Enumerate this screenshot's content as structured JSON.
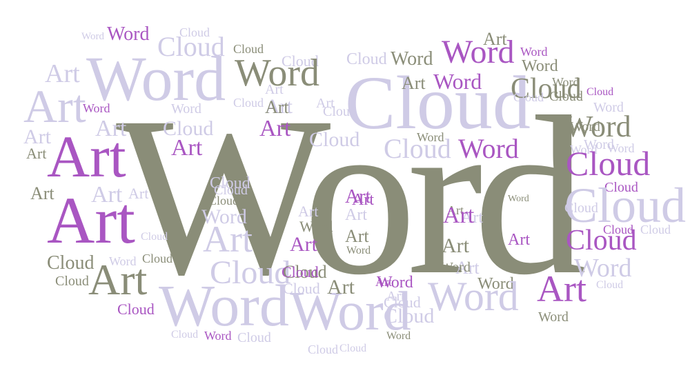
{
  "word_cloud": {
    "palette": {
      "olive": "#8a8d78",
      "purple": "#a956c2",
      "lavender": "#cfcbe6"
    },
    "words": [
      {
        "text": "Word",
        "tone": "olive"
      },
      {
        "text": "Word",
        "tone": "lavender"
      },
      {
        "text": "Cloud",
        "tone": "lavender"
      },
      {
        "text": "Art",
        "tone": "lavender"
      },
      {
        "text": "Art",
        "tone": "lavender"
      },
      {
        "text": "Word",
        "tone": "lavender"
      },
      {
        "text": "Word",
        "tone": "purple"
      },
      {
        "text": "Cloud",
        "tone": "lavender"
      },
      {
        "text": "Cloud",
        "tone": "olive"
      },
      {
        "text": "Cloud",
        "tone": "lavender"
      },
      {
        "text": "Word",
        "tone": "olive"
      },
      {
        "text": "Art",
        "tone": "lavender"
      },
      {
        "text": "Art",
        "tone": "lavender"
      },
      {
        "text": "Word",
        "tone": "purple"
      },
      {
        "text": "Word",
        "tone": "lavender"
      },
      {
        "text": "Cloud",
        "tone": "lavender"
      },
      {
        "text": "Art",
        "tone": "lavender"
      },
      {
        "text": "Art",
        "tone": "olive"
      },
      {
        "text": "Cloud",
        "tone": "lavender"
      },
      {
        "text": "Art",
        "tone": "purple"
      },
      {
        "text": "Art",
        "tone": "lavender"
      },
      {
        "text": "Art",
        "tone": "purple"
      },
      {
        "text": "Art",
        "tone": "lavender"
      },
      {
        "text": "Art",
        "tone": "olive"
      },
      {
        "text": "Art",
        "tone": "purple"
      },
      {
        "text": "Art",
        "tone": "purple"
      },
      {
        "text": "Art",
        "tone": "olive"
      },
      {
        "text": "Art",
        "tone": "lavender"
      },
      {
        "text": "Art",
        "tone": "lavender"
      },
      {
        "text": "Cloud",
        "tone": "olive"
      },
      {
        "text": "Word",
        "tone": "lavender"
      },
      {
        "text": "Cloud",
        "tone": "olive"
      },
      {
        "text": "Cloud",
        "tone": "olive"
      },
      {
        "text": "Art",
        "tone": "olive"
      },
      {
        "text": "Cloud",
        "tone": "lavender"
      },
      {
        "text": "Cloud",
        "tone": "purple"
      },
      {
        "text": "Word",
        "tone": "lavender"
      },
      {
        "text": "Cloud",
        "tone": "lavender"
      },
      {
        "text": "Art",
        "tone": "lavender"
      },
      {
        "text": "Cloud",
        "tone": "olive"
      },
      {
        "text": "Cloud",
        "tone": "lavender"
      },
      {
        "text": "Word",
        "tone": "olive"
      },
      {
        "text": "Cloud",
        "tone": "lavender"
      },
      {
        "text": "Word",
        "tone": "lavender"
      },
      {
        "text": "Art",
        "tone": "purple"
      },
      {
        "text": "Art",
        "tone": "purple"
      },
      {
        "text": "Cloud",
        "tone": "lavender"
      },
      {
        "text": "Art",
        "tone": "lavender"
      },
      {
        "text": "Cloud",
        "tone": "olive"
      },
      {
        "text": "Cloud",
        "tone": "lavender"
      },
      {
        "text": "Cloud",
        "tone": "lavender"
      },
      {
        "text": "Word",
        "tone": "purple"
      },
      {
        "text": "Word",
        "tone": "lavender"
      },
      {
        "text": "Cloud",
        "tone": "lavender"
      },
      {
        "text": "Art",
        "tone": "lavender"
      },
      {
        "text": "Art",
        "tone": "purple"
      },
      {
        "text": "Art",
        "tone": "olive"
      },
      {
        "text": "Word",
        "tone": "olive"
      },
      {
        "text": "Cloud",
        "tone": "purple"
      },
      {
        "text": "Art",
        "tone": "olive"
      },
      {
        "text": "Cloud",
        "tone": "lavender"
      },
      {
        "text": "Art",
        "tone": "purple"
      },
      {
        "text": "Art",
        "tone": "lavender"
      },
      {
        "text": "Art",
        "tone": "olive"
      },
      {
        "text": "Word",
        "tone": "olive"
      },
      {
        "text": "Cloud",
        "tone": "lavender"
      },
      {
        "text": "Art",
        "tone": "olive"
      },
      {
        "text": "Word",
        "tone": "purple"
      },
      {
        "text": "Word",
        "tone": "olive"
      },
      {
        "text": "Cloud",
        "tone": "lavender"
      },
      {
        "text": "Cloud",
        "tone": "lavender"
      },
      {
        "text": "Cloud",
        "tone": "lavender"
      },
      {
        "text": "Cloud",
        "tone": "lavender"
      },
      {
        "text": "Word",
        "tone": "olive"
      },
      {
        "text": "Cloud",
        "tone": "olive"
      },
      {
        "text": "Art",
        "tone": "olive"
      },
      {
        "text": "Word",
        "tone": "purple"
      },
      {
        "text": "Word",
        "tone": "olive"
      },
      {
        "text": "Art",
        "tone": "olive"
      },
      {
        "text": "Word",
        "tone": "purple"
      },
      {
        "text": "Word",
        "tone": "purple"
      },
      {
        "text": "Cloud",
        "tone": "lavender"
      },
      {
        "text": "Word",
        "tone": "olive"
      },
      {
        "text": "Word",
        "tone": "purple"
      },
      {
        "text": "Cloud",
        "tone": "olive"
      },
      {
        "text": "Word",
        "tone": "olive"
      },
      {
        "text": "Word",
        "tone": "lavender"
      },
      {
        "text": "Cloud",
        "tone": "purple"
      },
      {
        "text": "Word",
        "tone": "lavender"
      },
      {
        "text": "Word",
        "tone": "olive"
      },
      {
        "text": "Word",
        "tone": "lavender"
      },
      {
        "text": "Cloud",
        "tone": "purple"
      },
      {
        "text": "Cloud",
        "tone": "purple"
      },
      {
        "text": "Cloud",
        "tone": "lavender"
      },
      {
        "text": "Art",
        "tone": "purple"
      },
      {
        "text": "Cloud",
        "tone": "purple"
      },
      {
        "text": "Cloud",
        "tone": "lavender"
      },
      {
        "text": "Cloud",
        "tone": "purple"
      },
      {
        "text": "Word",
        "tone": "lavender"
      },
      {
        "text": "Cloud",
        "tone": "lavender"
      },
      {
        "text": "Art",
        "tone": "purple"
      },
      {
        "text": "Word",
        "tone": "olive"
      },
      {
        "text": "Art",
        "tone": "lavender"
      },
      {
        "text": "Word",
        "tone": "olive"
      },
      {
        "text": "Cloud",
        "tone": "lavender"
      },
      {
        "text": "Cloud",
        "tone": "lavender"
      },
      {
        "text": "Art",
        "tone": "lavender"
      },
      {
        "text": "Word",
        "tone": "lavender"
      },
      {
        "text": "Word",
        "tone": "olive"
      },
      {
        "text": "Art",
        "tone": "purple"
      },
      {
        "text": "Word",
        "tone": "olive"
      },
      {
        "text": "Word",
        "tone": "lavender"
      },
      {
        "text": "Cloud",
        "tone": "lavender"
      }
    ]
  }
}
